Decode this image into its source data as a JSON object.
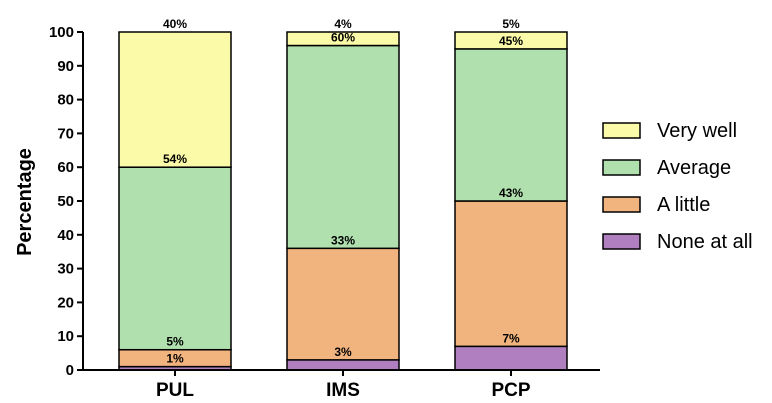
{
  "chart_data": {
    "type": "bar",
    "stacked": true,
    "categories": [
      "PUL",
      "IMS",
      "PCP"
    ],
    "ylabel": "Percentage",
    "xlabel": "",
    "ylim": [
      0,
      100
    ],
    "yticks": [
      0,
      10,
      20,
      30,
      40,
      50,
      60,
      70,
      80,
      90,
      100
    ],
    "legend_position": "right",
    "grid": false,
    "series": [
      {
        "name": "None at all",
        "color": "#b07fc0",
        "values": [
          1,
          3,
          7
        ],
        "labels": [
          "1%",
          "3%",
          "7%"
        ]
      },
      {
        "name": "A little",
        "color": "#f2b47e",
        "values": [
          5,
          33,
          43
        ],
        "labels": [
          "5%",
          "33%",
          "43%"
        ]
      },
      {
        "name": "Average",
        "color": "#afe0ad",
        "values": [
          54,
          60,
          45
        ],
        "labels": [
          "54%",
          "60%",
          "45%"
        ]
      },
      {
        "name": "Very well",
        "color": "#fbfaa8",
        "values": [
          40,
          4,
          5
        ],
        "labels": [
          "40%",
          "4%",
          "5%"
        ]
      }
    ],
    "legend_order": [
      "Very well",
      "Average",
      "A little",
      "None at all"
    ]
  }
}
